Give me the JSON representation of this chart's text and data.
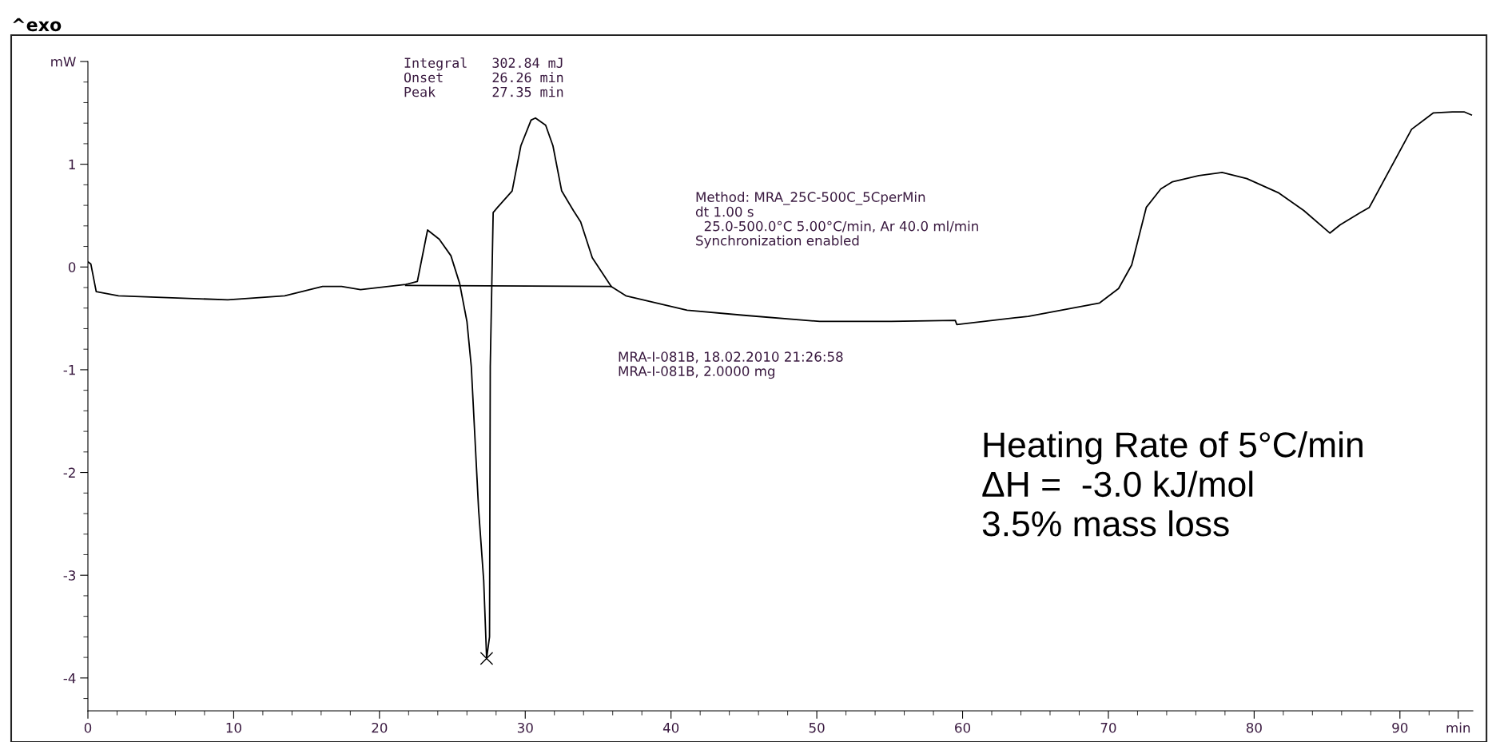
{
  "chart_data": {
    "type": "line",
    "x": [
      0,
      0.2,
      0.57,
      2.1,
      9.6,
      13.5,
      16.1,
      17.4,
      18.7,
      21.8,
      22.6,
      23.3,
      24.1,
      24.9,
      25.5,
      26.0,
      26.3,
      26.8,
      27.15,
      27.35,
      27.55,
      27.6,
      27.8,
      28.1,
      29.1,
      29.7,
      30.4,
      30.7,
      31.4,
      31.9,
      32.5,
      33.3,
      33.8,
      34.6,
      35.9,
      36.9,
      41.1,
      45.0,
      50.2,
      55.1,
      59.5,
      59.6,
      64.5,
      69.4,
      70.7,
      71.6,
      72.6,
      73.6,
      74.4,
      76.2,
      77.8,
      79.5,
      81.7,
      83.4,
      85.2,
      85.9,
      87.3,
      87.9,
      90.8,
      92.3,
      93.6,
      94.4,
      94.9
    ],
    "series": [
      {
        "color": "#000000",
        "values": [
          0.05,
          0.03,
          -0.24,
          -0.28,
          -0.32,
          -0.28,
          -0.19,
          -0.19,
          -0.22,
          -0.17,
          -0.14,
          0.36,
          0.27,
          0.11,
          -0.16,
          -0.53,
          -0.97,
          -2.36,
          -3.05,
          -3.81,
          -3.6,
          -0.97,
          0.53,
          0.58,
          0.74,
          1.18,
          1.43,
          1.45,
          1.38,
          1.18,
          0.74,
          0.55,
          0.44,
          0.09,
          -0.19,
          -0.28,
          -0.42,
          -0.47,
          -0.53,
          -0.53,
          -0.52,
          -0.56,
          -0.48,
          -0.35,
          -0.21,
          0.02,
          0.58,
          0.76,
          0.83,
          0.89,
          0.92,
          0.86,
          0.72,
          0.55,
          0.33,
          0.41,
          0.53,
          0.58,
          1.34,
          1.5,
          1.51,
          1.51,
          1.48
        ]
      },
      {
        "type": "line",
        "color": "#000000",
        "x": [
          21.8,
          35.9
        ],
        "values": [
          -0.18,
          -0.19
        ]
      },
      {
        "type": "scatter",
        "marker": "cross",
        "color": "#000000",
        "x": [
          27.35
        ],
        "values": [
          -3.81
        ]
      }
    ],
    "xlim": [
      0,
      95
    ],
    "xticks": [
      0,
      10,
      20,
      30,
      40,
      50,
      60,
      70,
      80,
      90,
      {
        "value": 94,
        "label": "min"
      }
    ],
    "ylim": [
      -4.32,
      2
    ],
    "yticks": [
      -4,
      -3,
      -2,
      -1,
      0,
      1,
      {
        "value": 2,
        "label": "mW"
      }
    ],
    "grid": false,
    "legend": false,
    "annotations": [
      "^exo",
      "Integral   302.84 mJ\nOnset      26.26 min\nPeak       27.35 min",
      "Method: MRA_25C-500C_5CperMin\ndt 1.00 s\n  25.0-500.0°C 5.00°C/min, Ar 40.0 ml/min\nSynchronization enabled",
      "MRA-I-081B, 18.02.2010 21:26:58\nMRA-I-081B, 2.0000 mg",
      "Heating Rate of 5°C/min\nΔH =  -3.0 kJ/mol\n3.5% mass loss"
    ]
  }
}
